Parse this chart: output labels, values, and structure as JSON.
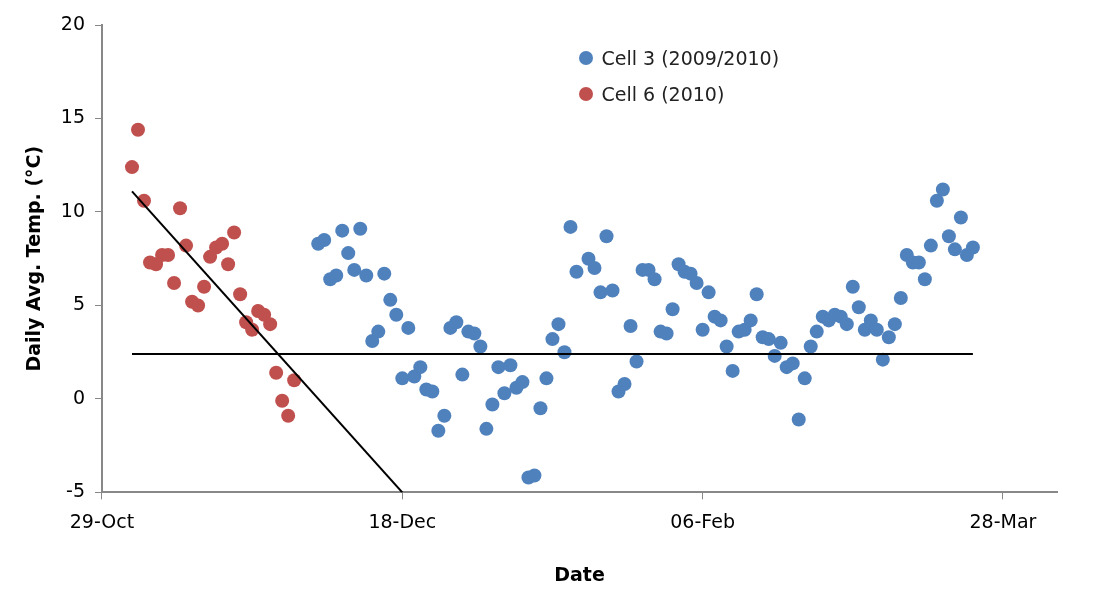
{
  "chart_data": {
    "type": "scatter",
    "xlabel": "Date",
    "ylabel": "Daily Avg. Temp. (°C)",
    "xlim": [
      "2009-10-29",
      "2010-04-06"
    ],
    "xticks": [
      {
        "value": "2009-10-29",
        "label": "29-Oct"
      },
      {
        "value": "2009-12-18",
        "label": "18-Dec"
      },
      {
        "value": "2010-02-06",
        "label": "06-Feb"
      },
      {
        "value": "2010-03-28",
        "label": "28-Mar"
      }
    ],
    "ylim": [
      -5,
      20
    ],
    "yticks": [
      -5,
      0,
      5,
      10,
      15,
      20
    ],
    "grid": false,
    "legend": "top",
    "series": [
      {
        "name": "Cell 3 (2009/2010)",
        "color": "#4f81bd",
        "marker": "circle",
        "x": [
          "2009-12-04",
          "2009-12-05",
          "2009-12-06",
          "2009-12-07",
          "2009-12-08",
          "2009-12-09",
          "2009-12-10",
          "2009-12-11",
          "2009-12-12",
          "2009-12-13",
          "2009-12-14",
          "2009-12-15",
          "2009-12-16",
          "2009-12-17",
          "2009-12-18",
          "2009-12-19",
          "2009-12-20",
          "2009-12-21",
          "2009-12-22",
          "2009-12-23",
          "2009-12-24",
          "2009-12-25",
          "2009-12-26",
          "2009-12-27",
          "2009-12-28",
          "2009-12-29",
          "2009-12-30",
          "2009-12-31",
          "2010-01-01",
          "2010-01-02",
          "2010-01-03",
          "2010-01-04",
          "2010-01-05",
          "2010-01-06",
          "2010-01-07",
          "2010-01-08",
          "2010-01-09",
          "2010-01-10",
          "2010-01-11",
          "2010-01-12",
          "2010-01-13",
          "2010-01-14",
          "2010-01-15",
          "2010-01-16",
          "2010-01-18",
          "2010-01-19",
          "2010-01-20",
          "2010-01-21",
          "2010-01-22",
          "2010-01-23",
          "2010-01-24",
          "2010-01-25",
          "2010-01-26",
          "2010-01-27",
          "2010-01-28",
          "2010-01-29",
          "2010-01-30",
          "2010-01-31",
          "2010-02-01",
          "2010-02-02",
          "2010-02-03",
          "2010-02-04",
          "2010-02-05",
          "2010-02-06",
          "2010-02-07",
          "2010-02-08",
          "2010-02-09",
          "2010-02-10",
          "2010-02-11",
          "2010-02-12",
          "2010-02-13",
          "2010-02-14",
          "2010-02-15",
          "2010-02-16",
          "2010-02-17",
          "2010-02-18",
          "2010-02-19",
          "2010-02-20",
          "2010-02-21",
          "2010-02-22",
          "2010-02-23",
          "2010-02-24",
          "2010-02-25",
          "2010-02-26",
          "2010-02-27",
          "2010-02-28",
          "2010-03-01",
          "2010-03-02",
          "2010-03-03",
          "2010-03-04",
          "2010-03-05",
          "2010-03-06",
          "2010-03-07",
          "2010-03-08",
          "2010-03-09",
          "2010-03-10",
          "2010-03-11",
          "2010-03-12",
          "2010-03-13",
          "2010-03-14",
          "2010-03-15",
          "2010-03-16",
          "2010-03-17",
          "2010-03-18",
          "2010-03-19",
          "2010-03-20",
          "2010-03-21",
          "2010-03-22",
          "2010-03-23"
        ],
        "values": [
          8.3,
          8.5,
          6.4,
          6.6,
          9.0,
          7.8,
          6.9,
          9.1,
          6.6,
          3.1,
          3.6,
          6.7,
          5.3,
          4.5,
          1.1,
          3.8,
          1.2,
          1.7,
          0.5,
          0.4,
          -1.7,
          -0.9,
          3.8,
          4.1,
          1.3,
          3.6,
          3.5,
          2.8,
          -1.6,
          -0.3,
          1.7,
          0.3,
          1.8,
          0.6,
          0.9,
          -4.2,
          -4.1,
          -0.5,
          1.1,
          3.2,
          4.0,
          2.5,
          9.2,
          6.8,
          7.5,
          7.0,
          5.7,
          8.7,
          5.8,
          0.4,
          0.8,
          3.9,
          2.0,
          6.9,
          6.9,
          6.4,
          3.6,
          3.5,
          4.8,
          7.2,
          6.8,
          6.7,
          6.2,
          3.7,
          5.7,
          4.4,
          4.2,
          2.8,
          1.5,
          3.6,
          3.7,
          4.2,
          5.6,
          3.3,
          3.2,
          2.3,
          3.0,
          1.7,
          1.9,
          -1.1,
          1.1,
          2.8,
          3.6,
          4.4,
          4.2,
          4.5,
          4.4,
          4.0,
          6.0,
          4.9,
          3.7,
          4.2,
          3.7,
          2.1,
          3.3,
          4.0,
          5.4,
          7.7,
          7.3,
          7.3,
          6.4,
          8.2,
          10.6,
          11.2,
          8.7,
          8.0,
          9.7,
          7.7,
          8.1
        ]
      },
      {
        "name": "Cell 6 (2010)",
        "color": "#c0504d",
        "marker": "circle",
        "x": [
          "2009-11-03",
          "2009-11-04",
          "2009-11-05",
          "2009-11-06",
          "2009-11-07",
          "2009-11-08",
          "2009-11-09",
          "2009-11-10",
          "2009-11-11",
          "2009-11-12",
          "2009-11-13",
          "2009-11-14",
          "2009-11-15",
          "2009-11-16",
          "2009-11-17",
          "2009-11-18",
          "2009-11-19",
          "2009-11-20",
          "2009-11-21",
          "2009-11-22",
          "2009-11-23",
          "2009-11-24",
          "2009-11-25",
          "2009-11-26",
          "2009-11-27",
          "2009-11-28",
          "2009-11-29",
          "2009-11-30"
        ],
        "values": [
          12.4,
          14.4,
          10.6,
          7.3,
          7.2,
          7.7,
          7.7,
          6.2,
          10.2,
          8.2,
          5.2,
          5.0,
          6.0,
          7.6,
          8.1,
          8.3,
          7.2,
          8.9,
          5.6,
          4.1,
          3.7,
          4.7,
          4.5,
          4.0,
          1.4,
          -0.1,
          -0.9,
          1.0
        ]
      },
      {
        "type": "line",
        "color": "#000000",
        "line_style": "solid",
        "x": [
          "2009-11-03",
          "2009-12-18"
        ],
        "values": [
          11.1,
          -5.0
        ]
      },
      {
        "type": "line",
        "color": "#000000",
        "line_style": "solid",
        "x": [
          "2009-11-03",
          "2010-03-23"
        ],
        "values": [
          2.4,
          2.4
        ]
      }
    ]
  }
}
